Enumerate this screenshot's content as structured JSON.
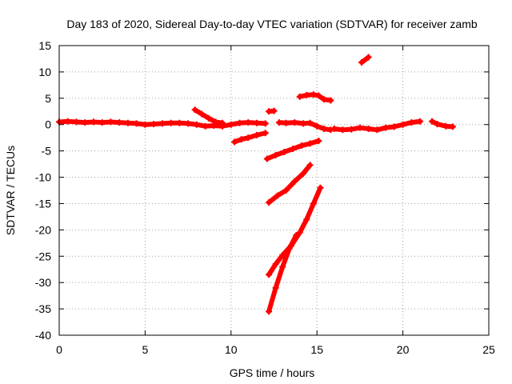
{
  "chart_data": {
    "type": "scatter",
    "title": "Day 183 of 2020, Sidereal Day-to-day VTEC variation (SDTVAR) for receiver zamb",
    "xlabel": "GPS time / hours",
    "ylabel": "SDTVAR / TECUs",
    "xlim": [
      0,
      25
    ],
    "ylim": [
      -40,
      15
    ],
    "xticks": [
      0,
      5,
      10,
      15,
      20,
      25
    ],
    "yticks": [
      15,
      10,
      5,
      0,
      -5,
      -10,
      -15,
      -20,
      -25,
      -30,
      -35,
      -40
    ],
    "grid": true,
    "series_color": "#ff0000",
    "series": [
      {
        "points": [
          [
            0.0,
            0.5
          ],
          [
            0.5,
            0.6
          ],
          [
            1.0,
            0.5
          ],
          [
            1.5,
            0.4
          ],
          [
            2.0,
            0.5
          ],
          [
            2.5,
            0.4
          ],
          [
            3.0,
            0.5
          ],
          [
            3.5,
            0.4
          ],
          [
            4.0,
            0.3
          ],
          [
            4.5,
            0.2
          ],
          [
            5.0,
            0.0
          ],
          [
            5.5,
            0.1
          ],
          [
            6.0,
            0.2
          ],
          [
            6.5,
            0.3
          ],
          [
            7.0,
            0.3
          ],
          [
            7.5,
            0.2
          ],
          [
            8.0,
            0.0
          ],
          [
            8.5,
            -0.3
          ],
          [
            9.0,
            -0.2
          ],
          [
            9.5,
            -0.3
          ],
          [
            10.0,
            0.0
          ],
          [
            10.5,
            0.3
          ],
          [
            11.0,
            0.4
          ],
          [
            11.5,
            0.3
          ],
          [
            12.0,
            0.2
          ]
        ]
      },
      {
        "points": [
          [
            7.9,
            2.8
          ],
          [
            8.3,
            2.0
          ],
          [
            8.7,
            1.2
          ],
          [
            9.1,
            0.5
          ],
          [
            9.5,
            0.3
          ]
        ]
      },
      {
        "points": [
          [
            10.2,
            -3.3
          ],
          [
            10.6,
            -2.8
          ],
          [
            11.0,
            -2.5
          ],
          [
            11.5,
            -2.0
          ],
          [
            12.0,
            -1.6
          ]
        ]
      },
      {
        "points": [
          [
            12.2,
            2.5
          ],
          [
            12.5,
            2.6
          ]
        ]
      },
      {
        "points": [
          [
            12.1,
            -6.5
          ],
          [
            12.6,
            -5.8
          ],
          [
            13.1,
            -5.2
          ],
          [
            13.6,
            -4.6
          ],
          [
            14.1,
            -4.0
          ],
          [
            14.6,
            -3.6
          ],
          [
            15.1,
            -3.1
          ]
        ]
      },
      {
        "points": [
          [
            12.2,
            -14.8
          ],
          [
            12.7,
            -13.5
          ],
          [
            13.2,
            -12.5
          ],
          [
            13.7,
            -10.8
          ],
          [
            14.2,
            -9.3
          ],
          [
            14.6,
            -7.7
          ]
        ]
      },
      {
        "points": [
          [
            12.2,
            -28.5
          ],
          [
            12.6,
            -26.5
          ],
          [
            13.0,
            -24.8
          ],
          [
            13.5,
            -23.0
          ],
          [
            14.0,
            -20.5
          ],
          [
            14.4,
            -18.0
          ],
          [
            14.8,
            -15.0
          ],
          [
            15.2,
            -12.0
          ]
        ]
      },
      {
        "points": [
          [
            12.2,
            -35.5
          ],
          [
            12.6,
            -31.0
          ],
          [
            13.0,
            -27.0
          ],
          [
            13.4,
            -23.5
          ],
          [
            13.8,
            -21.0
          ]
        ]
      },
      {
        "points": [
          [
            12.8,
            0.4
          ],
          [
            13.2,
            0.3
          ],
          [
            13.7,
            0.4
          ],
          [
            14.2,
            0.2
          ],
          [
            14.6,
            0.3
          ],
          [
            15.0,
            -0.3
          ],
          [
            15.4,
            -0.8
          ],
          [
            15.8,
            -1.0
          ]
        ]
      },
      {
        "points": [
          [
            14.0,
            5.3
          ],
          [
            14.4,
            5.6
          ],
          [
            14.8,
            5.7
          ],
          [
            15.1,
            5.5
          ],
          [
            15.4,
            4.8
          ],
          [
            15.8,
            4.6
          ]
        ]
      },
      {
        "points": [
          [
            16.0,
            -0.8
          ],
          [
            16.5,
            -1.0
          ],
          [
            17.0,
            -0.9
          ],
          [
            17.5,
            -0.6
          ],
          [
            18.0,
            -0.8
          ],
          [
            18.5,
            -1.0
          ],
          [
            19.0,
            -0.6
          ],
          [
            19.5,
            -0.4
          ],
          [
            20.0,
            0.0
          ],
          [
            20.5,
            0.4
          ],
          [
            21.0,
            0.6
          ]
        ]
      },
      {
        "points": [
          [
            21.7,
            0.6
          ],
          [
            22.0,
            0.1
          ],
          [
            22.5,
            -0.3
          ],
          [
            22.9,
            -0.4
          ]
        ]
      },
      {
        "points": [
          [
            17.6,
            11.8
          ],
          [
            18.0,
            12.8
          ]
        ]
      }
    ]
  }
}
